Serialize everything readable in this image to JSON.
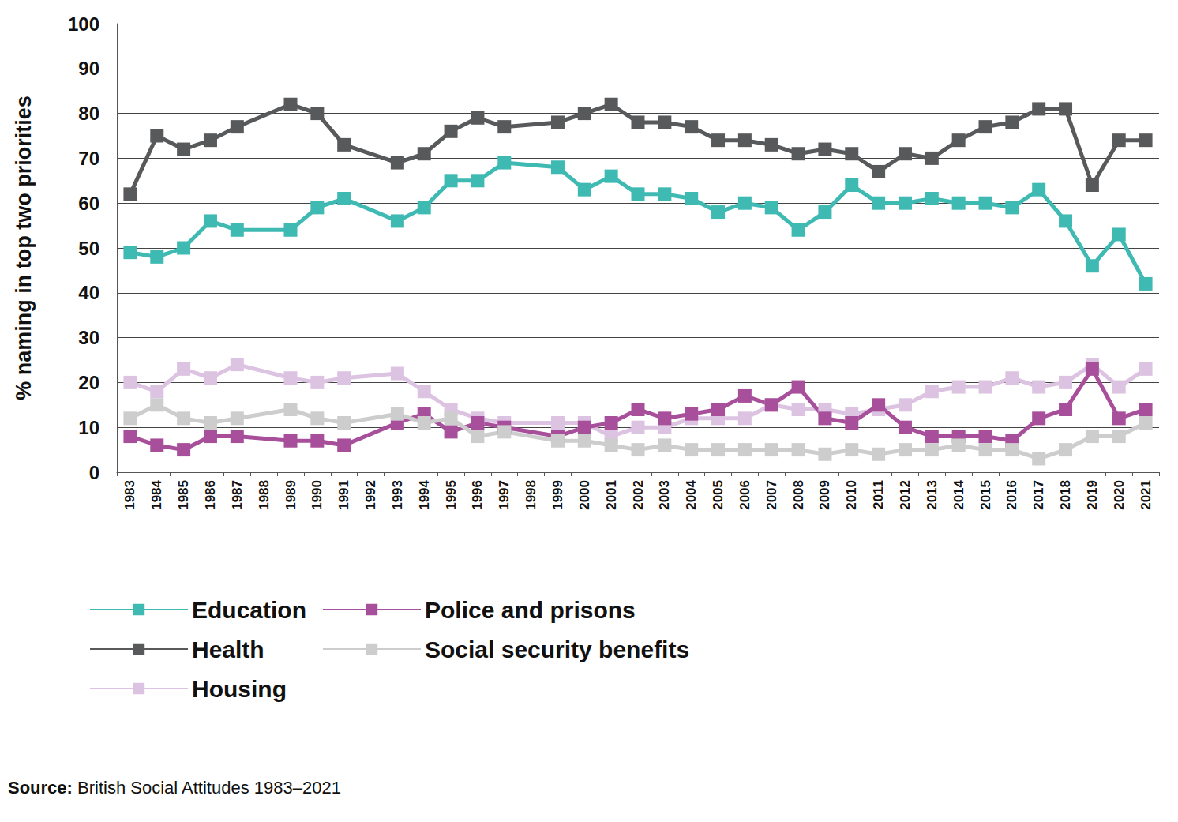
{
  "chart_data": {
    "type": "line",
    "y_label": "% naming in top two priorities",
    "source": "Source: British Social Attitudes 1983–2021",
    "categories": [
      "1983",
      "1984",
      "1985",
      "1986",
      "1987",
      "1988",
      "1989",
      "1990",
      "1991",
      "1992",
      "1993",
      "1994",
      "1995",
      "1996",
      "1997",
      "1998",
      "1999",
      "2000",
      "2001",
      "2002",
      "2003",
      "2004",
      "2005",
      "2006",
      "2007",
      "2008",
      "2009",
      "2010",
      "2011",
      "2012",
      "2013",
      "2014",
      "2015",
      "2016",
      "2017",
      "2018",
      "2019",
      "2020",
      "2021"
    ],
    "series": [
      {
        "name": "Education",
        "color": "#3fbab3",
        "values": [
          49,
          48,
          50,
          56,
          54,
          null,
          54,
          59,
          61,
          null,
          56,
          59,
          65,
          65,
          69,
          null,
          68,
          63,
          66,
          62,
          62,
          61,
          58,
          60,
          59,
          54,
          58,
          64,
          60,
          60,
          61,
          60,
          60,
          59,
          63,
          56,
          46,
          53,
          42
        ]
      },
      {
        "name": "Health",
        "color": "#58595b",
        "values": [
          62,
          75,
          72,
          74,
          77,
          null,
          82,
          80,
          73,
          null,
          69,
          71,
          76,
          79,
          77,
          null,
          78,
          80,
          82,
          78,
          78,
          77,
          74,
          74,
          73,
          71,
          72,
          71,
          67,
          71,
          70,
          74,
          77,
          78,
          81,
          81,
          64,
          74,
          74
        ]
      },
      {
        "name": "Housing",
        "color": "#dcc3e1",
        "values": [
          20,
          18,
          23,
          21,
          24,
          null,
          21,
          20,
          21,
          null,
          22,
          18,
          14,
          12,
          11,
          null,
          11,
          11,
          8,
          10,
          10,
          12,
          12,
          12,
          15,
          14,
          14,
          13,
          14,
          15,
          18,
          19,
          19,
          21,
          19,
          20,
          24,
          19,
          23
        ]
      },
      {
        "name": "Police and prisons",
        "color": "#a84f9b",
        "values": [
          8,
          6,
          5,
          8,
          8,
          null,
          7,
          7,
          6,
          null,
          11,
          13,
          9,
          11,
          10,
          null,
          8,
          10,
          11,
          14,
          12,
          13,
          14,
          17,
          15,
          19,
          12,
          11,
          15,
          10,
          8,
          8,
          8,
          7,
          12,
          14,
          23,
          12,
          14
        ]
      },
      {
        "name": "Social security benefits",
        "color": "#cdcdcd",
        "values": [
          12,
          15,
          12,
          11,
          12,
          null,
          14,
          12,
          11,
          null,
          13,
          11,
          12,
          8,
          9,
          null,
          7,
          7,
          6,
          5,
          6,
          5,
          5,
          5,
          5,
          5,
          4,
          5,
          4,
          5,
          5,
          6,
          5,
          5,
          3,
          5,
          8,
          8,
          11
        ]
      }
    ],
    "ylim": [
      0,
      100
    ],
    "yticks": [
      0,
      10,
      20,
      30,
      40,
      50,
      60,
      70,
      80,
      90,
      100
    ],
    "grid": true,
    "legend": "bottom left",
    "marker": "square"
  }
}
